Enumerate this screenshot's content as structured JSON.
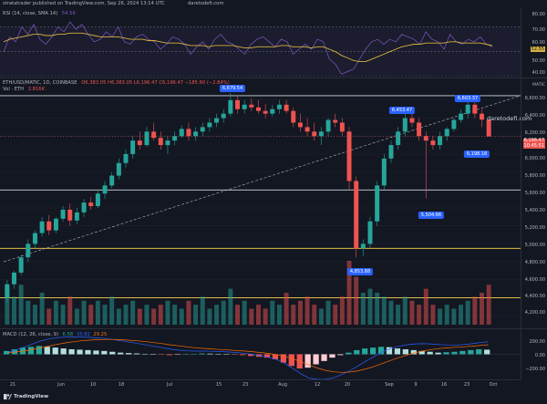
{
  "header": {
    "publisher": "stratatrader published on TradingView.com, Sep 26, 2024 13:14 UTC",
    "site": "daretodefi.com"
  },
  "rsi": {
    "label": "RSI (14, close, SMA 14)",
    "value": "54.56",
    "axis": [
      "80.00",
      "70.00",
      "60.00",
      "50.00",
      "40.00"
    ]
  },
  "main": {
    "symbol": "ETH/USD/MATIC, 1D, COINBASE",
    "ohlc": "O6,383.05  H6,383.05  L6,196.47  C6,196.47  −185.60 (−2.84%)",
    "volume_label": "Vol · ETH",
    "volume_value": "2.816K",
    "watermark": "daretodefi.com",
    "axis_title": "MATIC",
    "axis": [
      "6,600.00",
      "6,400.00",
      "6,200.00",
      "6,000.00",
      "5,800.00",
      "5,600.00",
      "5,400.00",
      "5,200.00",
      "5,000.00",
      "4,800.00",
      "4,600.00",
      "4,400.00",
      "4,200.00"
    ],
    "current_price": "6,196.47",
    "current_time": "10:45:51",
    "callouts": [
      "6,679.54",
      "6,453.47",
      "6,603.37",
      "6,198.18",
      "5,504.66",
      "4,853.88"
    ]
  },
  "macd": {
    "label": "MACD (12, 26, close, 9)",
    "values": [
      "6.58",
      "35.82",
      "29.25"
    ],
    "axis": [
      "200.00",
      "0.00",
      "−200.00"
    ]
  },
  "time_axis": [
    "21",
    "Jun",
    "10",
    "18",
    "Jul",
    "15",
    "23",
    "Aug",
    "12",
    "20",
    "Sep",
    "9",
    "16",
    "23",
    "Oct"
  ],
  "footer": {
    "brand": "TradingView"
  },
  "colors": {
    "up": "#26a69a",
    "down": "#ef5350",
    "rsi_line": "#7e57c2",
    "rsi_ma": "#d5b13e",
    "support": "#ffd54a",
    "callout": "#2962ff",
    "macd": "#2962ff",
    "signal": "#ff6d00"
  },
  "chart_data": [
    {
      "type": "line",
      "title": "RSI (14, close, SMA 14)",
      "ylim": [
        30,
        85
      ],
      "series": [
        {
          "name": "RSI",
          "values": [
            50,
            62,
            58,
            70,
            64,
            72,
            60,
            56,
            62,
            70,
            66,
            74,
            68,
            72,
            64,
            58,
            60,
            66,
            62,
            70,
            58,
            56,
            62,
            64,
            60,
            58,
            52,
            56,
            62,
            60,
            56,
            48,
            54,
            58,
            52,
            60,
            64,
            58,
            56,
            52,
            48,
            56,
            60,
            62,
            58,
            54,
            60,
            58,
            48,
            52,
            56,
            52,
            60,
            58,
            44,
            40,
            32,
            34,
            36,
            44,
            52,
            58,
            60,
            56,
            60,
            58,
            64,
            62,
            60,
            56,
            66,
            60,
            58,
            52,
            64,
            58,
            56,
            60,
            58,
            62,
            56,
            54
          ]
        },
        {
          "name": "RSI-based MA",
          "values": [
            58,
            60,
            61,
            62,
            63,
            64,
            64,
            63,
            63,
            64,
            64,
            65,
            65,
            65,
            64,
            63,
            62,
            62,
            62,
            62,
            61,
            60,
            60,
            60,
            59,
            59,
            58,
            57,
            57,
            57,
            56,
            55,
            55,
            55,
            54,
            55,
            55,
            55,
            55,
            54,
            53,
            53,
            54,
            54,
            54,
            54,
            55,
            55,
            54,
            54,
            54,
            53,
            54,
            54,
            52,
            50,
            47,
            45,
            43,
            42,
            42,
            44,
            46,
            48,
            50,
            52,
            54,
            55,
            56,
            56,
            57,
            57,
            57,
            57,
            58,
            58,
            57,
            57,
            57,
            57,
            56,
            55
          ]
        }
      ]
    },
    {
      "type": "candlestick",
      "title": "ETH/USD/MATIC, 1D, COINBASE",
      "ylabel": "MATIC",
      "ylim": [
        4100,
        6700
      ],
      "horizontal_levels": [
        4400,
        4950,
        5600,
        6650
      ],
      "candles": [
        [
          4400,
          4600,
          4350,
          4550
        ],
        [
          4550,
          4700,
          4500,
          4680
        ],
        [
          4680,
          4880,
          4650,
          4850
        ],
        [
          4850,
          5050,
          4800,
          5000
        ],
        [
          5000,
          5150,
          4950,
          5120
        ],
        [
          5120,
          5300,
          5080,
          5250
        ],
        [
          5250,
          5320,
          5100,
          5150
        ],
        [
          5150,
          5300,
          5120,
          5280
        ],
        [
          5280,
          5420,
          5250,
          5380
        ],
        [
          5380,
          5450,
          5200,
          5260
        ],
        [
          5260,
          5400,
          5220,
          5350
        ],
        [
          5350,
          5500,
          5300,
          5460
        ],
        [
          5460,
          5520,
          5380,
          5420
        ],
        [
          5420,
          5600,
          5400,
          5560
        ],
        [
          5560,
          5700,
          5500,
          5650
        ],
        [
          5650,
          5800,
          5620,
          5760
        ],
        [
          5760,
          5950,
          5720,
          5900
        ],
        [
          5900,
          6050,
          5850,
          6000
        ],
        [
          6000,
          6200,
          5950,
          6150
        ],
        [
          6150,
          6250,
          6050,
          6100
        ],
        [
          6100,
          6300,
          6080,
          6250
        ],
        [
          6250,
          6350,
          6150,
          6180
        ],
        [
          6180,
          6250,
          6050,
          6100
        ],
        [
          6100,
          6200,
          6000,
          6150
        ],
        [
          6150,
          6250,
          6100,
          6200
        ],
        [
          6200,
          6320,
          6180,
          6280
        ],
        [
          6280,
          6350,
          6150,
          6200
        ],
        [
          6200,
          6300,
          6150,
          6250
        ],
        [
          6250,
          6350,
          6200,
          6300
        ],
        [
          6300,
          6400,
          6250,
          6350
        ],
        [
          6350,
          6450,
          6300,
          6400
        ],
        [
          6400,
          6500,
          6350,
          6450
        ],
        [
          6450,
          6680,
          6420,
          6600
        ],
        [
          6600,
          6650,
          6450,
          6500
        ],
        [
          6500,
          6600,
          6450,
          6550
        ],
        [
          6550,
          6620,
          6480,
          6520
        ],
        [
          6520,
          6600,
          6450,
          6480
        ],
        [
          6480,
          6560,
          6400,
          6450
        ],
        [
          6450,
          6550,
          6420,
          6500
        ],
        [
          6500,
          6600,
          6450,
          6550
        ],
        [
          6550,
          6600,
          6450,
          6480
        ],
        [
          6480,
          6520,
          6300,
          6350
        ],
        [
          6350,
          6450,
          6250,
          6300
        ],
        [
          6300,
          6400,
          6200,
          6250
        ],
        [
          6250,
          6350,
          6150,
          6200
        ],
        [
          6200,
          6300,
          6100,
          6250
        ],
        [
          6250,
          6400,
          6200,
          6380
        ],
        [
          6380,
          6450,
          6300,
          6350
        ],
        [
          6350,
          6400,
          6200,
          6250
        ],
        [
          6250,
          6300,
          5600,
          5700
        ],
        [
          5700,
          5750,
          4850,
          4950
        ],
        [
          4950,
          5050,
          4860,
          5000
        ],
        [
          5000,
          5300,
          4950,
          5250
        ],
        [
          5250,
          5700,
          5200,
          5650
        ],
        [
          5650,
          6000,
          5600,
          5950
        ],
        [
          5950,
          6150,
          5900,
          6100
        ],
        [
          6100,
          6300,
          6050,
          6250
        ],
        [
          6250,
          6450,
          6200,
          6400
        ],
        [
          6400,
          6453,
          6300,
          6350
        ],
        [
          6350,
          6400,
          6150,
          6200
        ],
        [
          6200,
          6250,
          5505,
          6150
        ],
        [
          6150,
          6200,
          6050,
          6100
        ],
        [
          6100,
          6250,
          6050,
          6200
        ],
        [
          6200,
          6300,
          6150,
          6280
        ],
        [
          6280,
          6400,
          6250,
          6380
        ],
        [
          6380,
          6500,
          6350,
          6450
        ],
        [
          6450,
          6603,
          6400,
          6550
        ],
        [
          6550,
          6600,
          6400,
          6450
        ],
        [
          6450,
          6500,
          6300,
          6383
        ],
        [
          6383,
          6383,
          6196,
          6196
        ]
      ],
      "callout_prices": [
        6679.54,
        6453.47,
        6603.37,
        6198.18,
        5504.66,
        4853.88
      ],
      "trendline": {
        "from": 4800,
        "to": 6650
      }
    },
    {
      "type": "bar",
      "title": "Vol · ETH",
      "values": [
        9,
        7,
        10,
        6,
        5,
        8,
        4,
        6,
        5,
        7,
        4,
        6,
        5,
        6,
        5,
        7,
        4,
        5,
        6,
        4,
        5,
        4,
        5,
        6,
        5,
        4,
        6,
        5,
        7,
        4,
        5,
        6,
        9,
        5,
        6,
        4,
        5,
        4,
        6,
        5,
        8,
        5,
        6,
        7,
        5,
        4,
        6,
        5,
        7,
        16,
        12,
        8,
        9,
        8,
        7,
        6,
        5,
        7,
        6,
        5,
        9,
        5,
        4,
        5,
        4,
        5,
        6,
        7,
        8,
        10
      ]
    },
    {
      "type": "bar",
      "title": "MACD (12, 26, close, 9)",
      "ylim": [
        -300,
        300
      ],
      "values": [
        40,
        60,
        80,
        90,
        100,
        90,
        80,
        70,
        60,
        55,
        50,
        45,
        40,
        30,
        20,
        15,
        10,
        5,
        0,
        -5,
        -10,
        -5,
        0,
        5,
        10,
        8,
        5,
        0,
        -5,
        -10,
        -20,
        -30,
        -40,
        -60,
        -100,
        -140,
        -170,
        -160,
        -120,
        -80,
        -40,
        -10,
        20,
        50,
        70,
        80,
        90,
        85,
        70,
        60,
        50,
        40,
        30,
        20,
        25,
        30,
        40,
        50,
        60,
        55
      ]
    }
  ]
}
